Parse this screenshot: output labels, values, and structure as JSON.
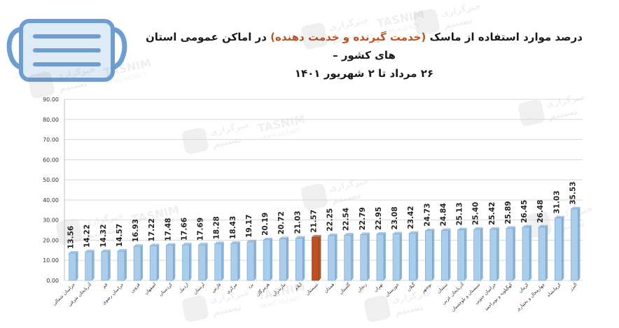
{
  "chart_data": {
    "type": "bar",
    "title": {
      "before": "درصد موارد استفاده از ماسک",
      "highlight": "(خدمت گیرنده و خدمت دهنده)",
      "after": "در اماکن عمومی استان های کشور –",
      "line2": "۲۶ مرداد تا ۲ شهریور ۱۴۰۱"
    },
    "xlabel": "",
    "ylabel": "",
    "ylim": [
      0,
      90
    ],
    "yticks": [
      "0.00",
      "10.00",
      "20.00",
      "30.00",
      "40.00",
      "50.00",
      "60.00",
      "70.00",
      "80.00",
      "90.00"
    ],
    "grid": true,
    "legend": "none",
    "categories": [
      "خراسان شمالی",
      "آذربایجان شرقی",
      "قم",
      "خراسان رضوی",
      "قزوین",
      "اصفهان",
      "کردستان",
      "اردبیل",
      "لرستان",
      "فارس",
      "مرکزی",
      "یزد",
      "هرمزگان",
      "مازندران",
      "ایلام",
      "سیستان",
      "همدان",
      "گلستان",
      "زنجان",
      "تهران",
      "خوزستان",
      "گیلان",
      "بوشهر",
      "سمنان",
      "آذربایجان غربی",
      "سیستان و بلوچستان",
      "خراسان جنوبی",
      "کهگیلویه و بویراحمد",
      "کرمان",
      "چهارمحال و بختیاری",
      "کرمانشاه",
      "البرز"
    ],
    "values": [
      13.56,
      14.22,
      14.32,
      14.57,
      16.93,
      17.22,
      17.48,
      17.66,
      17.69,
      18.28,
      18.43,
      19.17,
      20.19,
      20.72,
      21.03,
      21.57,
      22.25,
      22.54,
      22.79,
      22.95,
      23.08,
      23.42,
      24.73,
      24.84,
      25.13,
      25.4,
      25.42,
      25.89,
      26.45,
      26.48,
      31.03,
      35.53
    ],
    "value_labels": [
      "13.56",
      "14.22",
      "14.32",
      "14.57",
      "16.93",
      "17.22",
      "17.48",
      "17.66",
      "17.69",
      "18.28",
      "18.43",
      "19.17",
      "20.19",
      "20.72",
      "21.03",
      "21.57",
      "22.25",
      "22.54",
      "22.79",
      "22.95",
      "23.08",
      "23.42",
      "24.73",
      "24.84",
      "25.13",
      "25.40",
      "25.42",
      "25.89",
      "26.45",
      "26.48",
      "31.03",
      "35.53"
    ],
    "highlight_index": 15
  },
  "watermark": {
    "brand_en": "TASNIM",
    "agency_en": "NEWS AGENCY",
    "brand_fa": "خبرگزاری",
    "name_fa": "تسنیم"
  },
  "colors": {
    "bar": "#a9cdea",
    "bar_edge": "#6f9fcc",
    "highlight": "#c0501f",
    "highlight_edge": "#8a3512",
    "grid": "#d9d9d9",
    "mask": "#6d9ed1"
  },
  "icons": {
    "mask": "face-mask-icon"
  }
}
